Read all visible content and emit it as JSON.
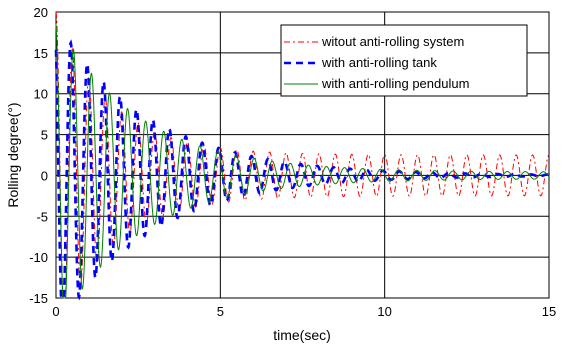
{
  "chart_data": {
    "type": "line",
    "xlabel": "time(sec)",
    "ylabel": "Rolling degree(°)",
    "xlim": [
      0,
      15
    ],
    "ylim": [
      -15,
      20
    ],
    "xticks": [
      0,
      5,
      10,
      15
    ],
    "yticks": [
      -15,
      -10,
      -5,
      0,
      5,
      10,
      15,
      20
    ],
    "grid": true,
    "legend_position": "top-right",
    "series": [
      {
        "name": "witout anti-rolling system",
        "color": "#ff0000",
        "dash": "dash-dot",
        "amp0": 20,
        "amp_floor": 2.5,
        "decay": 0.6,
        "period": 0.5,
        "phase": 0
      },
      {
        "name": "with anti-rolling tank",
        "color": "#0000ff",
        "dash": "dash",
        "amp0": 19,
        "amp_floor": 0,
        "decay": 0.35,
        "period": 0.5,
        "phase": 0.05
      },
      {
        "name": "with anti-rolling pendulum",
        "color": "#008000",
        "dash": "solid",
        "amp0": 19,
        "amp_floor": 0.4,
        "decay": 0.4,
        "period": 0.55,
        "phase": 0.02
      }
    ]
  }
}
